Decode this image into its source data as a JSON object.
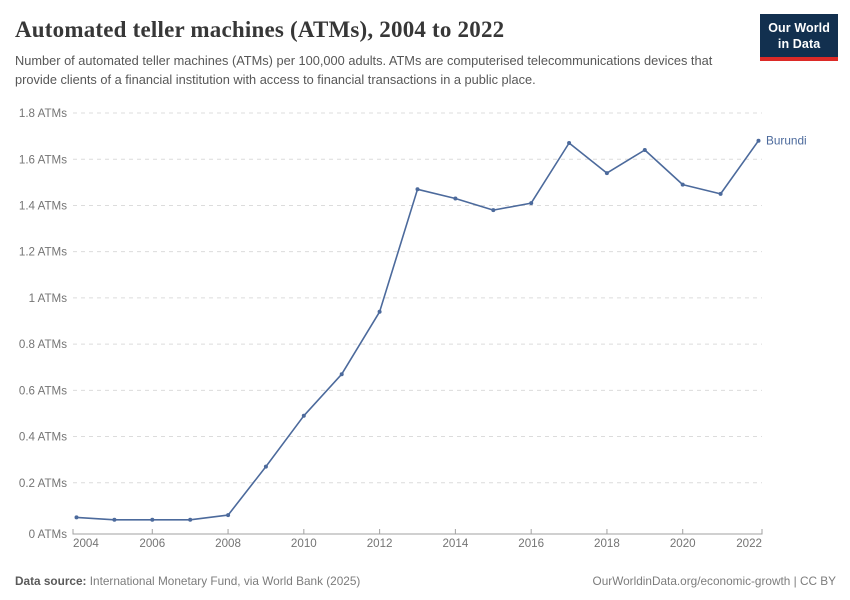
{
  "header": {
    "title": "Automated teller machines (ATMs), 2004 to 2022",
    "subtitle": "Number of automated teller machines (ATMs) per 100,000 adults. ATMs are computerised telecommunications devices that provide clients of a financial institution with access to financial transactions in a public place."
  },
  "logo": {
    "line1": "Our World",
    "line2": "in Data",
    "bg_color": "#12304f",
    "accent_color": "#dc2a27"
  },
  "chart_data": {
    "type": "line",
    "title": "Automated teller machines (ATMs), 2004 to 2022",
    "entity_label": "Burundi",
    "x": [
      2004,
      2005,
      2006,
      2007,
      2008,
      2009,
      2010,
      2011,
      2012,
      2013,
      2014,
      2015,
      2016,
      2017,
      2018,
      2019,
      2020,
      2021,
      2022
    ],
    "series": [
      {
        "name": "Burundi",
        "color": "#4c6a9c",
        "values": [
          0.05,
          0.04,
          0.04,
          0.04,
          0.06,
          0.27,
          0.49,
          0.67,
          0.94,
          1.47,
          1.43,
          1.38,
          1.41,
          1.67,
          1.54,
          1.64,
          1.49,
          1.45,
          1.68
        ]
      }
    ],
    "xlim": [
      2004,
      2022
    ],
    "ylim": [
      0,
      1.8
    ],
    "x_ticks": [
      2004,
      2006,
      2008,
      2010,
      2012,
      2014,
      2016,
      2018,
      2020,
      2022
    ],
    "y_ticks": [
      0,
      0.2,
      0.4,
      0.6,
      0.8,
      1,
      1.2,
      1.4,
      1.6,
      1.8
    ],
    "y_tick_labels": [
      "0 ATMs",
      "0.2 ATMs",
      "0.4 ATMs",
      "0.6 ATMs",
      "0.8 ATMs",
      "1 ATMs",
      "1.2 ATMs",
      "1.4 ATMs",
      "1.6 ATMs",
      "1.8 ATMs"
    ],
    "grid": "horizontal-dashed",
    "legend_position": "end-of-line-label"
  },
  "footer": {
    "datasource_label": "Data source:",
    "datasource_text": " International Monetary Fund, via World Bank (2025)",
    "link_text": "OurWorldinData.org/economic-growth | CC BY"
  }
}
